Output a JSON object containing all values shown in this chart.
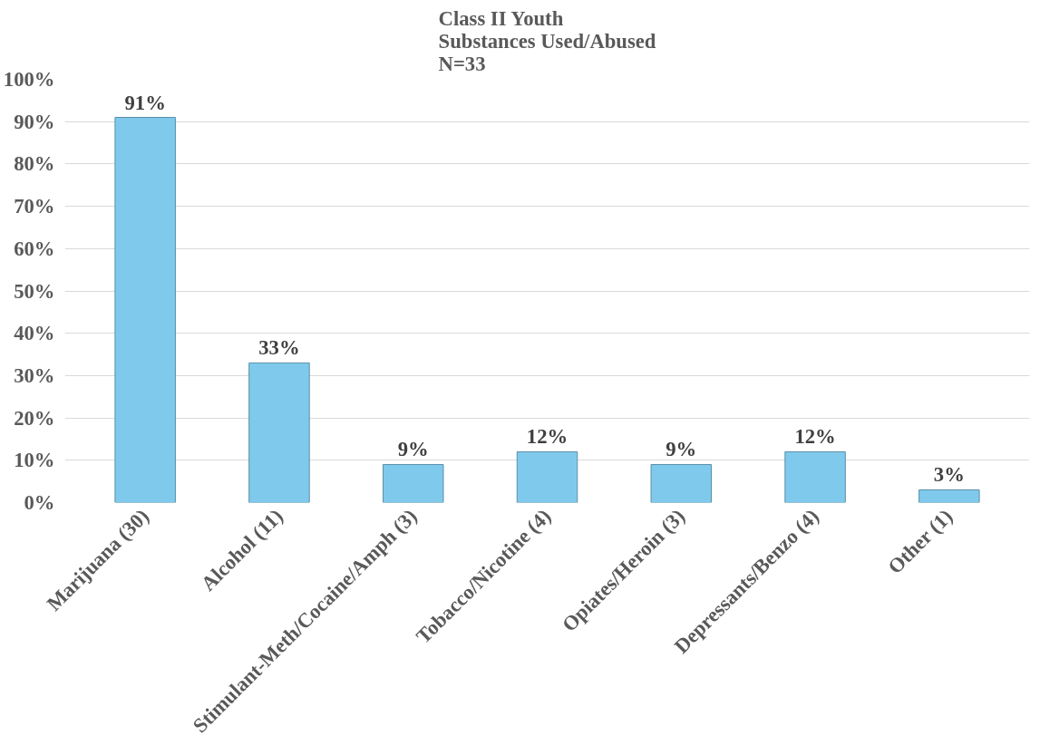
{
  "chart_data": {
    "type": "bar",
    "title": "Class II Youth\nSubstances Used/Abused\nN=33",
    "categories": [
      "Marijuana (30)",
      "Alcohol (11)",
      "Stimulant-Meth/Cocaine/Amph (3)",
      "Tobacco/Nicotine (4)",
      "Opiates/Heroin (3)",
      "Depressants/Benzo (4)",
      "Other (1)"
    ],
    "values": [
      91,
      33,
      9,
      12,
      9,
      12,
      3
    ],
    "value_labels": [
      "91%",
      "33%",
      "9%",
      "12%",
      "9%",
      "12%",
      "3%"
    ],
    "color": "#7fc9ec",
    "ylim": [
      0,
      100
    ],
    "yticks": [
      {
        "value": 0,
        "label": "0%"
      },
      {
        "value": 10,
        "label": "10%"
      },
      {
        "value": 20,
        "label": "20%"
      },
      {
        "value": 30,
        "label": "30%"
      },
      {
        "value": 40,
        "label": "40%"
      },
      {
        "value": 50,
        "label": "50%"
      },
      {
        "value": 60,
        "label": "60%"
      },
      {
        "value": 70,
        "label": "70%"
      },
      {
        "value": 80,
        "label": "80%"
      },
      {
        "value": 90,
        "label": "90%"
      },
      {
        "value": 100,
        "label": "100%"
      }
    ],
    "grid": "y"
  }
}
